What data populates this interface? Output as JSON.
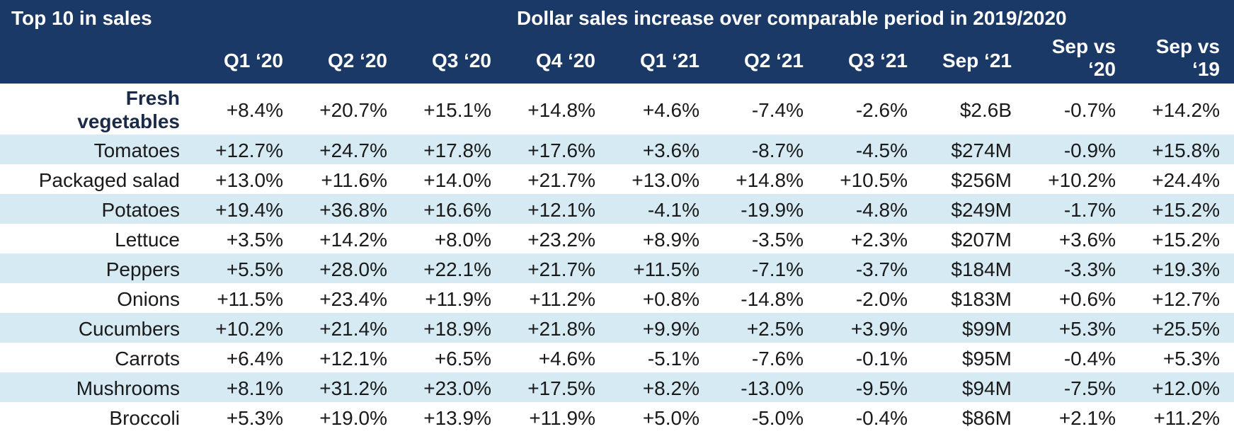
{
  "chart_data": {
    "type": "table",
    "title_left": "Top 10 in sales",
    "title_right": "Dollar sales increase over comparable period in 2019/2020",
    "columns": [
      "Q1 ‘20",
      "Q2 ‘20",
      "Q3 ‘20",
      "Q4 ‘20",
      "Q1 ‘21",
      "Q2 ‘21",
      "Q3 ‘21",
      "Sep ‘21",
      "Sep vs ‘20",
      "Sep vs ‘19"
    ],
    "columns_line1": [
      "Q1 ‘20",
      "Q2 ‘20",
      "Q3 ‘20",
      "Q4 ‘20",
      "Q1 ‘21",
      "Q2 ‘21",
      "Q3 ‘21",
      "Sep ‘21",
      "Sep vs",
      "Sep vs"
    ],
    "columns_line2": [
      "",
      "",
      "",
      "",
      "",
      "",
      "",
      "",
      "‘20",
      "‘19"
    ],
    "rows": [
      {
        "label": "Fresh vegetables",
        "label_line1": "Fresh",
        "label_line2": "vegetables",
        "values": [
          "+8.4%",
          "+20.7%",
          "+15.1%",
          "+14.8%",
          "+4.6%",
          "-7.4%",
          "-2.6%",
          "$2.6B",
          "-0.7%",
          "+14.2%"
        ]
      },
      {
        "label": "Tomatoes",
        "values": [
          "+12.7%",
          "+24.7%",
          "+17.8%",
          "+17.6%",
          "+3.6%",
          "-8.7%",
          "-4.5%",
          "$274M",
          "-0.9%",
          "+15.8%"
        ]
      },
      {
        "label": "Packaged salad",
        "values": [
          "+13.0%",
          "+11.6%",
          "+14.0%",
          "+21.7%",
          "+13.0%",
          "+14.8%",
          "+10.5%",
          "$256M",
          "+10.2%",
          "+24.4%"
        ]
      },
      {
        "label": "Potatoes",
        "values": [
          "+19.4%",
          "+36.8%",
          "+16.6%",
          "+12.1%",
          "-4.1%",
          "-19.9%",
          "-4.8%",
          "$249M",
          "-1.7%",
          "+15.2%"
        ]
      },
      {
        "label": "Lettuce",
        "values": [
          "+3.5%",
          "+14.2%",
          "+8.0%",
          "+23.2%",
          "+8.9%",
          "-3.5%",
          "+2.3%",
          "$207M",
          "+3.6%",
          "+15.2%"
        ]
      },
      {
        "label": "Peppers",
        "values": [
          "+5.5%",
          "+28.0%",
          "+22.1%",
          "+21.7%",
          "+11.5%",
          "-7.1%",
          "-3.7%",
          "$184M",
          "-3.3%",
          "+19.3%"
        ]
      },
      {
        "label": "Onions",
        "values": [
          "+11.5%",
          "+23.4%",
          "+11.9%",
          "+11.2%",
          "+0.8%",
          "-14.8%",
          "-2.0%",
          "$183M",
          "+0.6%",
          "+12.7%"
        ]
      },
      {
        "label": "Cucumbers",
        "values": [
          "+10.2%",
          "+21.4%",
          "+18.9%",
          "+21.8%",
          "+9.9%",
          "+2.5%",
          "+3.9%",
          "$99M",
          "+5.3%",
          "+25.5%"
        ]
      },
      {
        "label": "Carrots",
        "values": [
          "+6.4%",
          "+12.1%",
          "+6.5%",
          "+4.6%",
          "-5.1%",
          "-7.6%",
          "-0.1%",
          "$95M",
          "-0.4%",
          "+5.3%"
        ]
      },
      {
        "label": "Mushrooms",
        "values": [
          "+8.1%",
          "+31.2%",
          "+23.0%",
          "+17.5%",
          "+8.2%",
          "-13.0%",
          "-9.5%",
          "$94M",
          "-7.5%",
          "+12.0%"
        ]
      },
      {
        "label": "Broccoli",
        "values": [
          "+5.3%",
          "+19.0%",
          "+13.9%",
          "+11.9%",
          "+5.0%",
          "-5.0%",
          "-0.4%",
          "$86M",
          "+2.1%",
          "+11.2%"
        ]
      }
    ],
    "colors": {
      "header_bg": "#1b3966",
      "header_text": "#ffffff",
      "stripe": "#d5eaf2"
    }
  }
}
